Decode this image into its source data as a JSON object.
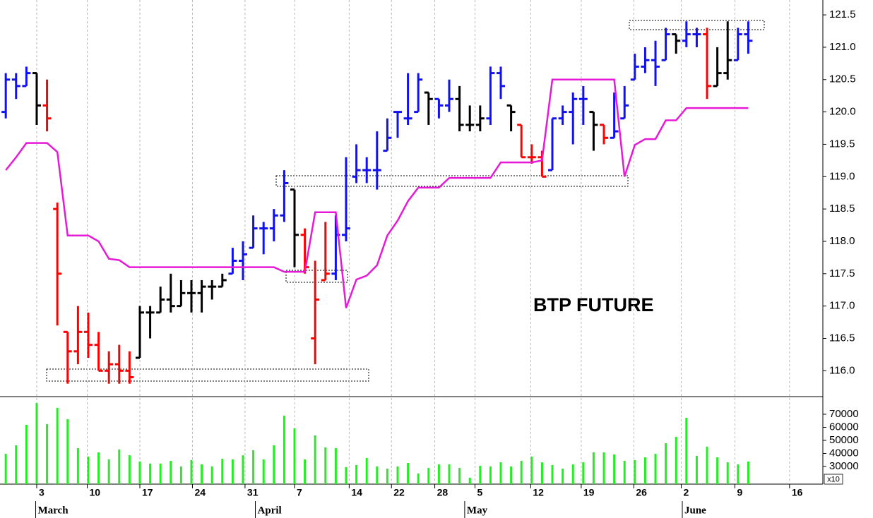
{
  "chart_data": [
    {
      "type": "ohlc",
      "annotation": "BTP FUTURE",
      "x": [
        -3,
        -2,
        -1,
        0,
        1,
        2,
        3,
        4,
        5,
        6,
        7,
        8,
        9,
        10,
        11,
        12,
        13,
        14,
        15,
        16,
        17,
        18,
        19,
        20,
        21,
        22,
        23,
        24,
        25,
        26,
        27,
        28,
        29,
        30,
        31,
        32,
        33,
        34,
        35,
        36,
        37,
        38,
        39,
        40,
        41,
        42,
        43,
        44,
        45,
        46,
        47,
        48,
        49,
        50,
        51,
        52,
        53,
        54,
        55,
        56,
        57,
        58,
        59,
        60,
        61,
        62,
        63,
        64,
        65,
        66,
        67,
        68,
        69
      ],
      "open": [
        120.0,
        120.5,
        120.4,
        120.6,
        120.1,
        118.5,
        116.6,
        116.3,
        116.6,
        116.4,
        116.0,
        116.1,
        116.0,
        116.2,
        116.9,
        116.9,
        117.1,
        117.0,
        117.2,
        117.2,
        117.3,
        117.3,
        117.5,
        117.7,
        117.9,
        118.2,
        118.2,
        118.4,
        118.8,
        118.1,
        116.5,
        117.4,
        117.5,
        118.1,
        119.0,
        119.1,
        119.1,
        119.4,
        120.0,
        119.9,
        120.0,
        120.3,
        120.2,
        120.1,
        120.2,
        119.8,
        119.8,
        119.9,
        120.6,
        120.1,
        119.8,
        119.3,
        119.3,
        119.1,
        119.9,
        120.0,
        120.2,
        120.0,
        119.8,
        119.6,
        119.9,
        120.5,
        120.7,
        120.8,
        120.8,
        121.2,
        121.1,
        121.2,
        121.2,
        120.4,
        120.6,
        120.8,
        121.2
      ],
      "high": [
        120.6,
        120.6,
        120.7,
        120.6,
        120.5,
        118.6,
        116.6,
        117.0,
        116.9,
        116.6,
        116.3,
        116.4,
        116.3,
        117.0,
        117.0,
        117.3,
        117.5,
        117.4,
        117.4,
        117.4,
        117.4,
        117.5,
        117.9,
        118.0,
        118.4,
        118.3,
        118.5,
        119.1,
        118.8,
        118.2,
        117.7,
        118.3,
        118.4,
        119.3,
        119.5,
        119.3,
        119.7,
        119.9,
        120.0,
        120.6,
        120.6,
        120.3,
        120.2,
        120.5,
        120.4,
        120.1,
        120.1,
        120.7,
        120.7,
        120.1,
        119.8,
        119.5,
        119.4,
        119.9,
        120.1,
        120.3,
        120.4,
        120.0,
        119.8,
        120.3,
        120.4,
        120.9,
        121.0,
        121.1,
        121.3,
        121.2,
        121.4,
        121.3,
        121.3,
        121.0,
        121.4,
        121.3,
        121.4
      ],
      "low": [
        119.9,
        120.2,
        120.4,
        119.8,
        119.7,
        116.7,
        115.8,
        116.1,
        116.2,
        116.0,
        115.8,
        115.8,
        115.8,
        116.2,
        116.5,
        116.9,
        116.9,
        117.0,
        116.9,
        116.9,
        117.1,
        117.3,
        117.5,
        117.4,
        117.9,
        117.8,
        118.0,
        118.3,
        117.6,
        117.5,
        116.1,
        117.4,
        117.4,
        118.0,
        118.9,
        118.9,
        118.8,
        119.4,
        119.6,
        119.8,
        120.0,
        119.8,
        119.9,
        120.0,
        119.7,
        119.7,
        119.7,
        119.8,
        120.2,
        119.7,
        119.3,
        119.2,
        119.0,
        119.1,
        119.8,
        119.5,
        119.8,
        119.4,
        119.5,
        119.6,
        119.9,
        120.5,
        120.6,
        120.4,
        120.8,
        120.9,
        121.0,
        121.0,
        120.2,
        120.4,
        120.5,
        120.8,
        120.9
      ],
      "close": [
        120.5,
        120.4,
        120.6,
        120.1,
        119.9,
        117.5,
        116.3,
        116.6,
        116.4,
        116.0,
        116.1,
        116.0,
        115.9,
        116.9,
        116.9,
        117.1,
        117.0,
        117.2,
        117.2,
        117.3,
        117.3,
        117.4,
        117.7,
        117.8,
        118.2,
        118.2,
        118.4,
        118.9,
        118.1,
        117.6,
        117.1,
        117.5,
        118.1,
        118.2,
        119.1,
        119.1,
        119.1,
        119.6,
        120.0,
        119.9,
        120.5,
        120.2,
        120.1,
        120.2,
        119.8,
        119.8,
        119.9,
        120.6,
        120.4,
        120.0,
        119.3,
        119.3,
        119.0,
        119.9,
        120.0,
        120.2,
        120.2,
        119.8,
        119.6,
        119.7,
        120.1,
        120.7,
        120.8,
        120.7,
        121.2,
        121.1,
        121.2,
        121.2,
        120.4,
        120.6,
        120.8,
        121.2,
        121.1
      ],
      "colors": [
        "#1010f0",
        "#1010f0",
        "#1010f0",
        "#000000",
        "#ff0000",
        "#ff0000",
        "#ff0000",
        "#ff0000",
        "#ff0000",
        "#ff0000",
        "#ff0000",
        "#ff0000",
        "#ff0000",
        "#000000",
        "#000000",
        "#000000",
        "#000000",
        "#000000",
        "#000000",
        "#000000",
        "#000000",
        "#000000",
        "#1010f0",
        "#1010f0",
        "#1010f0",
        "#1010f0",
        "#1010f0",
        "#1010f0",
        "#000000",
        "#ff0000",
        "#ff0000",
        "#ff0000",
        "#1010f0",
        "#1010f0",
        "#1010f0",
        "#1010f0",
        "#1010f0",
        "#1010f0",
        "#1010f0",
        "#1010f0",
        "#1010f0",
        "#000000",
        "#1010f0",
        "#1010f0",
        "#000000",
        "#000000",
        "#000000",
        "#1010f0",
        "#1010f0",
        "#000000",
        "#ff0000",
        "#ff0000",
        "#ff0000",
        "#1010f0",
        "#1010f0",
        "#1010f0",
        "#1010f0",
        "#000000",
        "#ff0000",
        "#1010f0",
        "#1010f0",
        "#1010f0",
        "#1010f0",
        "#1010f0",
        "#1010f0",
        "#000000",
        "#1010f0",
        "#1010f0",
        "#ff0000",
        "#000000",
        "#000000",
        "#1010f0",
        "#1010f0"
      ],
      "line": {
        "color": "#e619d6",
        "values": [
          119.1,
          119.3,
          119.52,
          119.52,
          119.52,
          119.38,
          118.09,
          118.09,
          118.09,
          118.0,
          117.73,
          117.71,
          117.6,
          117.6,
          117.6,
          117.6,
          117.6,
          117.6,
          117.6,
          117.6,
          117.6,
          117.6,
          117.6,
          117.6,
          117.6,
          117.6,
          117.6,
          117.53,
          117.53,
          117.53,
          118.45,
          118.45,
          118.45,
          116.97,
          117.41,
          117.47,
          117.63,
          118.09,
          118.32,
          118.62,
          118.83,
          118.83,
          118.83,
          118.98,
          118.98,
          118.98,
          118.98,
          118.98,
          119.22,
          119.22,
          119.22,
          119.22,
          119.25,
          120.5,
          120.5,
          120.5,
          120.5,
          120.5,
          120.5,
          120.5,
          119.0,
          119.49,
          119.58,
          119.58,
          119.87,
          119.87,
          120.06,
          120.06,
          120.06,
          120.06,
          120.06,
          120.06,
          120.06
        ]
      },
      "xlim": [
        -3.56,
        76.23
      ],
      "ylim": [
        115.6,
        121.73
      ],
      "yticks": [
        {
          "value": 116,
          "label": "116.0"
        },
        116.5,
        {
          "value": 117,
          "label": "117.0"
        },
        117.5,
        {
          "value": 118,
          "label": "118.0"
        },
        118.5,
        {
          "value": 119,
          "label": "119.0"
        },
        119.5,
        {
          "value": 120,
          "label": "120.0"
        },
        120.5,
        {
          "value": 121,
          "label": "121.0"
        },
        121.5
      ]
    },
    {
      "type": "bar",
      "color": "#22ee22",
      "multiplier": "x10",
      "x": [
        -3,
        -2,
        -1,
        0,
        1,
        2,
        3,
        4,
        5,
        6,
        7,
        8,
        9,
        10,
        11,
        12,
        13,
        14,
        15,
        16,
        17,
        18,
        19,
        20,
        21,
        22,
        23,
        24,
        25,
        26,
        27,
        28,
        29,
        30,
        31,
        32,
        33,
        34,
        35,
        36,
        37,
        38,
        39,
        40,
        41,
        42,
        43,
        44,
        45,
        46,
        47,
        48,
        49,
        50,
        51,
        52,
        53,
        54,
        55,
        56,
        57,
        58,
        59,
        60,
        61,
        62,
        63,
        64,
        65,
        66,
        67,
        68,
        69
      ],
      "values": [
        39700,
        46200,
        61900,
        78600,
        62400,
        74900,
        66200,
        44000,
        37600,
        40800,
        35400,
        43000,
        38600,
        33800,
        32200,
        32200,
        34300,
        30000,
        34900,
        31600,
        30000,
        35900,
        35400,
        38600,
        42400,
        35400,
        46200,
        68900,
        59200,
        35400,
        53800,
        44600,
        44000,
        29500,
        31100,
        36500,
        30000,
        28400,
        30000,
        32700,
        24600,
        28900,
        31600,
        31600,
        28900,
        21400,
        30500,
        30000,
        33200,
        30000,
        34300,
        37600,
        33200,
        31100,
        28400,
        31600,
        33200,
        40800,
        40800,
        39200,
        34300,
        34900,
        37000,
        39700,
        47800,
        52700,
        67300,
        38100,
        45100,
        37000,
        33200,
        31600,
        33800
      ],
      "xlim": [
        -3.56,
        76.23
      ],
      "ylim": [
        16500,
        83500
      ],
      "yticks": [
        30000,
        40000,
        50000,
        60000,
        70000
      ],
      "xticks": [
        {
          "value": 0,
          "label": "3"
        },
        {
          "value": 4.9,
          "label": "10"
        },
        {
          "value": 10,
          "label": "17"
        },
        {
          "value": 15.1,
          "label": "24"
        },
        {
          "value": 20.2,
          "label": "31"
        },
        {
          "value": 25,
          "label": "7"
        },
        {
          "value": 30.3,
          "label": "14"
        },
        {
          "value": 34.4,
          "label": "22"
        },
        {
          "value": 38.6,
          "label": "28"
        },
        {
          "value": 42.5,
          "label": "5"
        },
        {
          "value": 47.9,
          "label": "12"
        },
        {
          "value": 52.8,
          "label": "19"
        },
        {
          "value": 57.9,
          "label": "26"
        },
        {
          "value": 62.5,
          "label": "2"
        },
        {
          "value": 67.7,
          "label": "9"
        },
        {
          "value": 73,
          "label": "16"
        }
      ],
      "month_ticks": [
        {
          "value": -0.1,
          "label": "March"
        },
        {
          "value": 21.2,
          "label": "April"
        },
        {
          "value": 41.5,
          "label": "May"
        },
        {
          "value": 62.6,
          "label": "June"
        }
      ]
    }
  ]
}
